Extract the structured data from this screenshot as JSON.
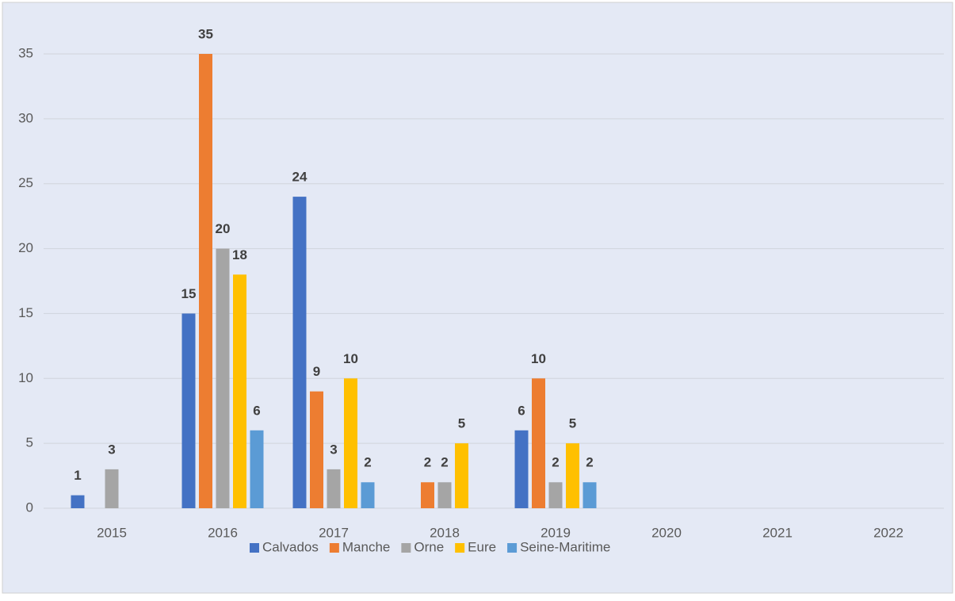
{
  "chart_data": {
    "type": "bar",
    "categories": [
      "2015",
      "2016",
      "2017",
      "2018",
      "2019",
      "2020",
      "2021",
      "2022"
    ],
    "series": [
      {
        "name": "Calvados",
        "color": "#4472c4",
        "values": [
          1,
          15,
          24,
          null,
          6,
          null,
          null,
          null
        ]
      },
      {
        "name": "Manche",
        "color": "#ed7d31",
        "values": [
          null,
          35,
          9,
          2,
          10,
          null,
          null,
          null
        ]
      },
      {
        "name": "Orne",
        "color": "#a5a5a5",
        "values": [
          3,
          20,
          3,
          2,
          2,
          null,
          null,
          null
        ]
      },
      {
        "name": "Eure",
        "color": "#ffc000",
        "values": [
          null,
          18,
          10,
          5,
          5,
          null,
          null,
          null
        ]
      },
      {
        "name": "Seine-Maritime",
        "color": "#5b9bd5",
        "values": [
          null,
          6,
          2,
          null,
          2,
          null,
          null,
          null
        ]
      }
    ],
    "ylim": [
      0,
      35
    ],
    "yticks": [
      0,
      5,
      10,
      15,
      20,
      25,
      30,
      35
    ],
    "grid": true,
    "legend": "bottom"
  }
}
